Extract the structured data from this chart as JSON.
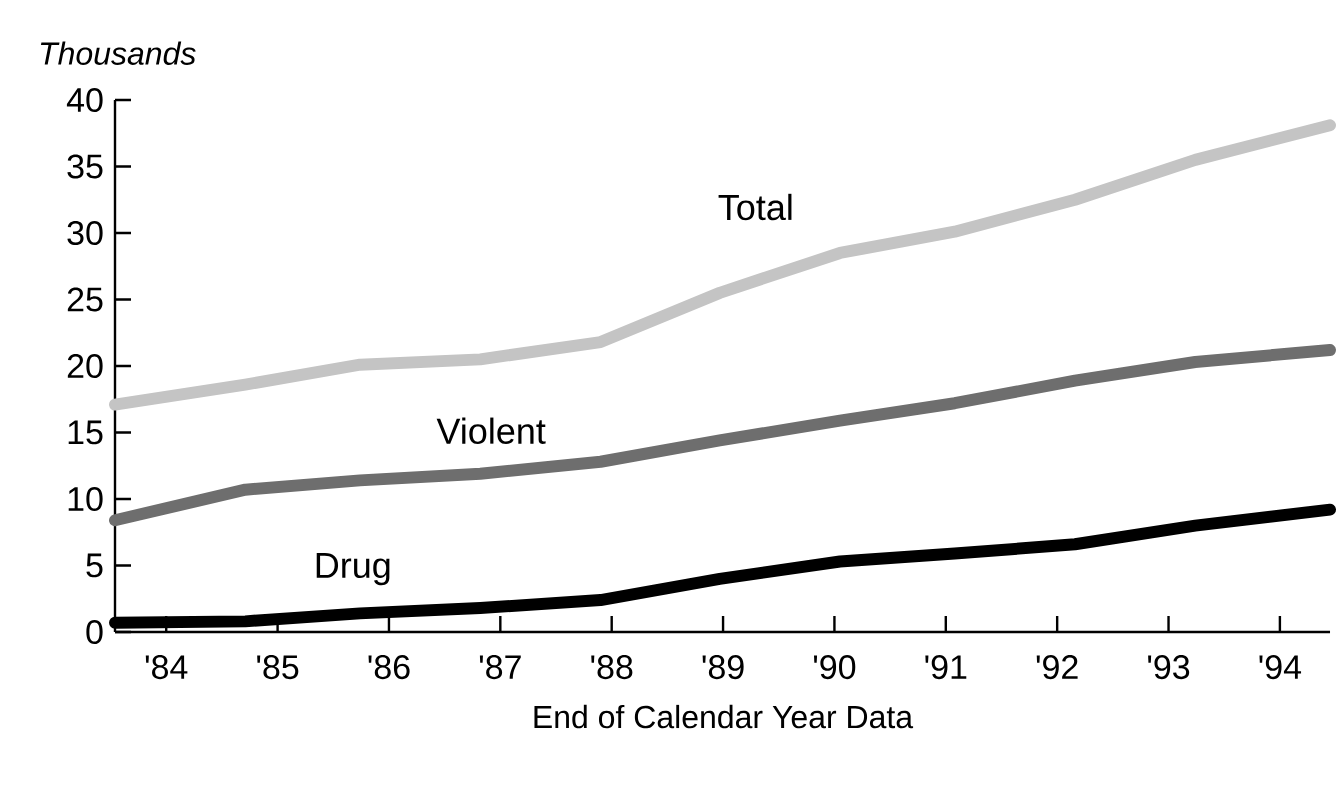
{
  "chart_data": {
    "type": "line",
    "ylabel": "Thousands",
    "xlabel": "End of Calendar Year Data",
    "x": [
      83.54,
      84.71,
      85.74,
      86.82,
      87.9,
      88.97,
      90.05,
      91.08,
      92.16,
      93.24,
      94.45
    ],
    "series": [
      {
        "name": "Total",
        "color": "#c4c4c4",
        "values": [
          17.1,
          18.6,
          20.1,
          20.5,
          21.8,
          25.5,
          28.5,
          30.1,
          32.5,
          35.5,
          38.1
        ]
      },
      {
        "name": "Violent",
        "color": "#6e6e6e",
        "values": [
          8.4,
          10.7,
          11.4,
          11.9,
          12.8,
          14.4,
          15.9,
          17.2,
          18.9,
          20.3,
          21.2
        ]
      },
      {
        "name": "Drug",
        "color": "#000000",
        "values": [
          0.7,
          0.8,
          1.4,
          1.8,
          2.4,
          4.0,
          5.3,
          5.9,
          6.6,
          8.0,
          9.2
        ]
      }
    ],
    "xlim": [
      83.54,
      94.45
    ],
    "ylim": [
      0,
      40
    ],
    "xticks": [
      {
        "value": 84,
        "label": "'84"
      },
      {
        "value": 85,
        "label": "'85"
      },
      {
        "value": 86,
        "label": "'86"
      },
      {
        "value": 87,
        "label": "'87"
      },
      {
        "value": 88,
        "label": "'88"
      },
      {
        "value": 89,
        "label": "'89"
      },
      {
        "value": 90,
        "label": "'90"
      },
      {
        "value": 91,
        "label": "'91"
      },
      {
        "value": 92,
        "label": "'92"
      },
      {
        "value": 93,
        "label": "'93"
      },
      {
        "value": 94,
        "label": "'94"
      }
    ],
    "yticks": [
      0,
      5,
      10,
      15,
      20,
      25,
      30,
      35,
      40
    ],
    "line_style": "solid"
  }
}
